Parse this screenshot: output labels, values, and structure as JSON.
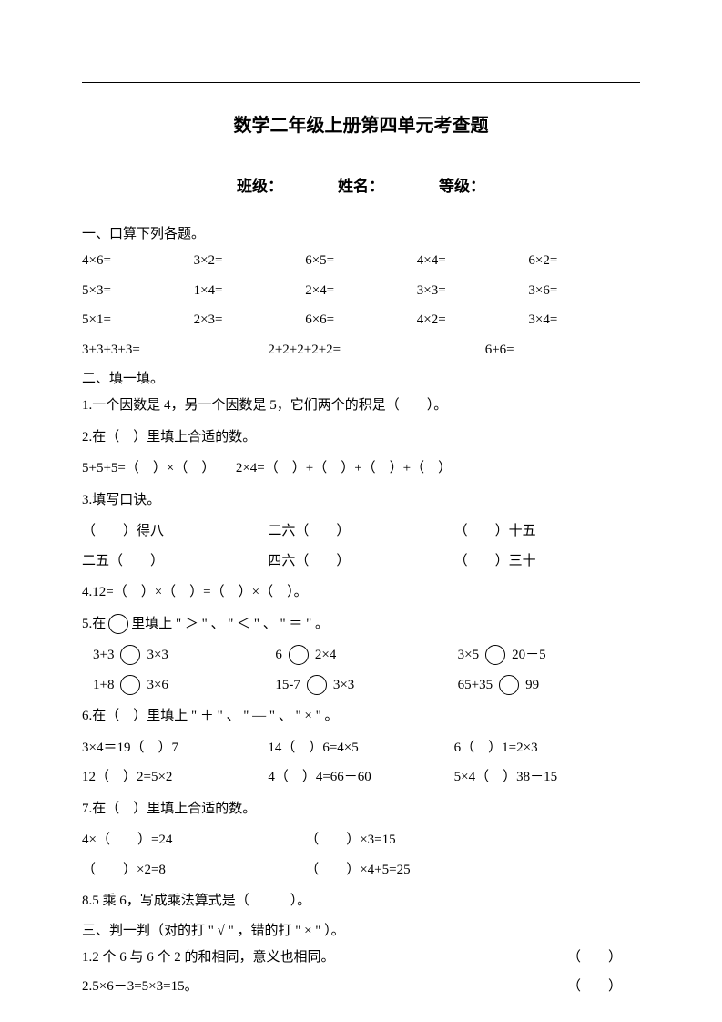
{
  "title": "数学二年级上册第四单元考查题",
  "info": {
    "class_label": "班级：",
    "name_label": "姓名：",
    "grade_label": "等级："
  },
  "s1": {
    "heading": "一、口算下列各题。",
    "r1": [
      "4×6=",
      "3×2=",
      "6×5=",
      "4×4=",
      "6×2="
    ],
    "r2": [
      "5×3=",
      "1×4=",
      "2×4=",
      "3×3=",
      "3×6="
    ],
    "r3": [
      "5×1=",
      "2×3=",
      "6×6=",
      "4×2=",
      "3×4="
    ],
    "r4": [
      "3+3+3+3=",
      "2+2+2+2+2=",
      "6+6="
    ]
  },
  "s2": {
    "heading": "二、填一填。",
    "q1": "1.一个因数是 4，另一个因数是 5，它们两个的积是（　　）。",
    "q2": "2.在（　）里填上合适的数。",
    "q2line": "5+5+5=（　）×（　）　　2×4=（　）+（　）+（　）+（　）",
    "q3": "3.填写口诀。",
    "q3r1": [
      "（　　）得八",
      "二六（　　）",
      "（　　）十五"
    ],
    "q3r2": [
      "二五（　　）",
      "四六（　　）",
      "（　　）三十"
    ],
    "q4": "4.12=（　）×（　）=（　）×（　）。",
    "q5": "5.在　　里填上 \" ＞ \" 、 \" ＜ \" 、 \" ＝ \" 。",
    "q5r1": [
      [
        "3+3",
        "3×3"
      ],
      [
        "6",
        "2×4"
      ],
      [
        "3×5",
        "20－5"
      ]
    ],
    "q5r2": [
      [
        "1+8",
        "3×6"
      ],
      [
        "15-7",
        "3×3"
      ],
      [
        "65+35",
        "99"
      ]
    ],
    "q6": "6.在（　）里填上 \" ＋ \" 、 \" — \" 、 \" × \" 。",
    "q6r1": [
      "3×4＝19（　）7",
      "14（　）6=4×5",
      "6（　）1=2×3"
    ],
    "q6r2": [
      "12（　）2=5×2",
      "4（　）4=66－60",
      "5×4（　）38－15"
    ],
    "q7": "7.在（　）里填上合适的数。",
    "q7r1": [
      "4×（　　）=24",
      "（　　）×3=15"
    ],
    "q7r2": [
      "（　　）×2=8",
      "（　　）×4+5=25"
    ],
    "q8": "8.5 乘 6，写成乘法算式是（　　　）。"
  },
  "s3": {
    "heading": "三、判一判（对的打 \" √ \" ，错的打 \" × \" ）。",
    "q1": {
      "text": "1.2 个 6 与 6 个 2 的和相同，意义也相同。",
      "blank": "（　　）"
    },
    "q2": {
      "text": "2.5×6－3=5×3=15。",
      "blank": "（　　）"
    }
  }
}
